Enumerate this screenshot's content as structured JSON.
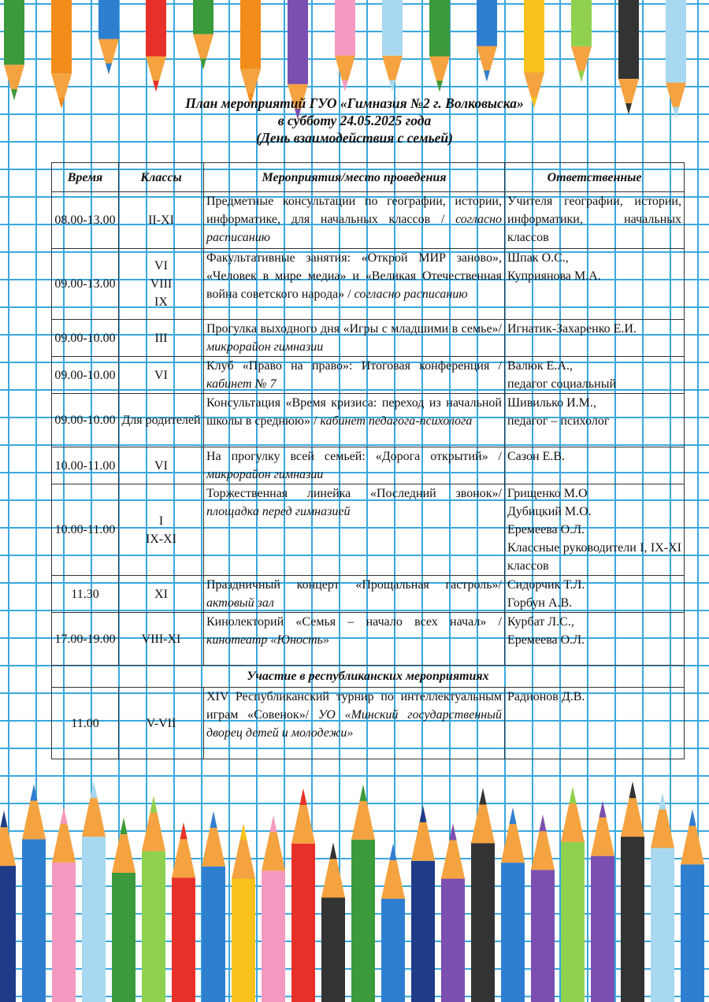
{
  "header": {
    "title": [
      "План мероприятий ГУО «Гимназия №2 г. Волковыска»",
      "в субботу 24.05.2025 года",
      "(День взаимодействия с семьей)"
    ]
  },
  "table": {
    "columns": [
      "Время",
      "Классы",
      "Мероприятия/место проведения",
      "Ответственные"
    ],
    "rows": [
      {
        "time": "08.00-13.00",
        "classes": [
          "II-XI"
        ],
        "event": "Предметные консультации по географии, истории, информатике, для начальных классов /",
        "place": "согласно расписанию",
        "responsible": [
          "Учителя географии, истории, информатики, начальных классов"
        ]
      },
      {
        "time": "09.00-13.00",
        "classes": [
          "VI",
          "VIII",
          "IX"
        ],
        "event": "Факультативные занятия: «Открой МИР заново», «Человек в мире медиа» и «Великая Отечественная война советского народа» /",
        "place": "согласно расписанию",
        "responsible": [
          "Шпак О.С.,",
          "Куприянова М.А."
        ]
      },
      {
        "time": "09.00-10.00",
        "classes": [
          "III"
        ],
        "event": "Прогулка выходного дня «Игры с младшими в семье»/",
        "place": "микрорайон гимназии",
        "responsible": [
          "Игнатик-Захаренко Е.И."
        ]
      },
      {
        "time": "09.00-10.00",
        "classes": [
          "VI"
        ],
        "event": "Клуб «Право на право»: Итоговая конференция /",
        "place": "кабинет № 7",
        "responsible": [
          "Валюк Е.А.,",
          "педагог социальный"
        ]
      },
      {
        "time": "09.00-10.00",
        "classes": [
          "Для родителей"
        ],
        "event": "Консультация «Время кризиса: переход из начальной школы в среднюю» /",
        "place": "кабинет педагога-психолога",
        "responsible": [
          "Шивилько И.М.,",
          "педагог – психолог"
        ]
      },
      {
        "time": "10.00-11.00",
        "classes": [
          "VI"
        ],
        "event": "На прогулку всей семьей: «Дорога открытий» /",
        "place": "микрорайон гимназии",
        "responsible": [
          "Сазон Е.В."
        ]
      },
      {
        "time": "10.00-11.00",
        "classes": [
          "I",
          "IX-XI"
        ],
        "event": "Торжественная линейка «Последний звонок»/",
        "place": "площадка перед гимназией",
        "responsible": [
          "Грищенко М.О",
          "Дубицкий М.О.",
          "Еремеева О.Л.",
          "Классные руководители I, IX-XI классов"
        ]
      },
      {
        "time": "11.30",
        "classes": [
          "XI"
        ],
        "event": "Праздничный концерт «Прощальная гастроль»/",
        "place": "актовый зал",
        "responsible": [
          "Сидорчик Т.Л.",
          "Горбун А.В."
        ]
      },
      {
        "time": "17.00-19.00",
        "classes": [
          "VIII-XI"
        ],
        "event": "Кинолекторий «Семья – начало всех начал» /",
        "place": "кинотеатр «Юность»",
        "responsible": [
          "Курбат Л.С.,",
          "Еремеева О.Л."
        ]
      }
    ],
    "section": "Участие в республиканских мероприятиях",
    "section_rows": [
      {
        "time": "11.00",
        "classes": [
          "V-VII"
        ],
        "event": "XIV Республиканский турнир по интеллектуальным играм «Совенок»/",
        "place": "УО «Минский государственный дворец детей и молодежи»",
        "responsible": [
          "Радионов Д.В."
        ]
      }
    ]
  }
}
